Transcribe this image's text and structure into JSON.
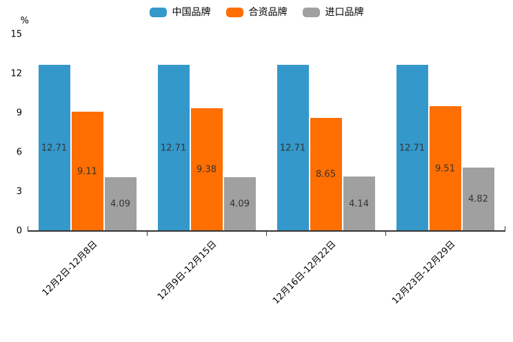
{
  "chart_data": {
    "type": "bar",
    "title": "",
    "unit_label": "%",
    "categories": [
      "12月2日-12月8日",
      "12月9日-12月15日",
      "12月16日-12月22日",
      "12月23日-12月29日"
    ],
    "series": [
      {
        "name": "中国品牌",
        "color": "#3498cb",
        "values": [
          12.71,
          12.71,
          12.71,
          12.71
        ]
      },
      {
        "name": "合资品牌",
        "color": "#ff6e00",
        "values": [
          9.11,
          9.38,
          8.65,
          9.51
        ]
      },
      {
        "name": "进口品牌",
        "color": "#a0a0a0",
        "values": [
          4.09,
          4.09,
          4.14,
          4.82
        ]
      }
    ],
    "ylim": [
      0,
      15
    ],
    "yticks": [
      0,
      3,
      6,
      9,
      12,
      15
    ],
    "bar_labels": true,
    "grid": false,
    "legend_position": "top",
    "text_color": "#000000",
    "bar_label_color": "#333333",
    "axis_color": "#333333",
    "background_color": "#ffffff"
  }
}
